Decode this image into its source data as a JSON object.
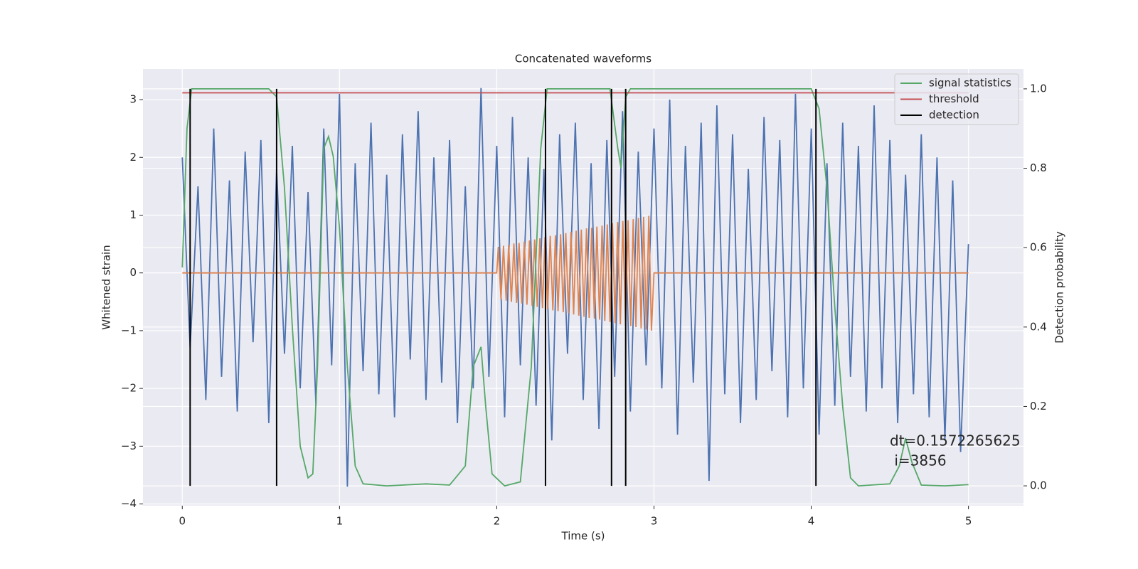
{
  "chart_data": {
    "type": "line",
    "title": "Concatenated waveforms",
    "x_label": "Time (s)",
    "y_label": "Whitened strain",
    "y2_label": "Detection probability",
    "xlim": [
      -0.25,
      5.35
    ],
    "ylim": [
      -4.03,
      3.53
    ],
    "y2lim": [
      -0.05,
      1.05
    ],
    "xticks": [
      0,
      1,
      2,
      3,
      4,
      5
    ],
    "yticks": [
      {
        "value": -4,
        "label": "−4"
      },
      {
        "value": -3,
        "label": "−3"
      },
      {
        "value": -2,
        "label": "−2"
      },
      {
        "value": -1,
        "label": "−1"
      },
      0,
      1,
      2,
      3
    ],
    "y2ticks": [
      {
        "value": 0,
        "label": "0.0"
      },
      0.2,
      0.4,
      0.6,
      0.8,
      {
        "value": 1,
        "label": "1.0"
      }
    ],
    "grid": true,
    "legend": "upper right",
    "annotation": [
      "dt=0.1572265625",
      " i=3856"
    ],
    "series": [
      {
        "color": "#4c72b0",
        "axis": "y",
        "x": [
          0,
          0.05,
          0.1,
          0.15,
          0.2,
          0.25,
          0.3,
          0.35,
          0.4,
          0.45,
          0.5,
          0.55,
          0.6,
          0.65,
          0.7,
          0.75,
          0.8,
          0.85,
          0.9,
          0.95,
          1,
          1.05,
          1.1,
          1.15,
          1.2,
          1.25,
          1.3,
          1.35,
          1.4,
          1.45,
          1.5,
          1.55,
          1.6,
          1.65,
          1.7,
          1.75,
          1.8,
          1.85,
          1.9,
          1.95,
          2,
          2.05,
          2.1,
          2.15,
          2.2,
          2.25,
          2.3,
          2.35,
          2.4,
          2.45,
          2.5,
          2.55,
          2.6,
          2.65,
          2.7,
          2.75,
          2.8,
          2.85,
          2.9,
          2.95,
          3,
          3.05,
          3.1,
          3.15,
          3.2,
          3.25,
          3.3,
          3.35,
          3.4,
          3.45,
          3.5,
          3.55,
          3.6,
          3.65,
          3.7,
          3.75,
          3.8,
          3.85,
          3.9,
          3.95,
          4,
          4.05,
          4.1,
          4.15,
          4.2,
          4.25,
          4.3,
          4.35,
          4.4,
          4.45,
          4.5,
          4.55,
          4.6,
          4.65,
          4.7,
          4.75,
          4.8,
          4.85,
          4.9,
          4.95,
          5
        ],
        "values": [
          2.0,
          -1.3,
          1.5,
          -2.2,
          2.5,
          -1.8,
          1.6,
          -2.4,
          2.1,
          -1.2,
          2.3,
          -2.6,
          1.8,
          -1.4,
          2.2,
          -2.0,
          1.4,
          -2.3,
          2.5,
          -1.6,
          3.1,
          -3.7,
          1.9,
          -1.7,
          2.6,
          -2.1,
          1.7,
          -2.5,
          2.4,
          -1.5,
          2.8,
          -2.2,
          2.0,
          -1.9,
          2.3,
          -2.6,
          1.5,
          -2.0,
          3.2,
          -1.8,
          2.2,
          -2.5,
          2.7,
          -1.6,
          2.0,
          -2.3,
          1.8,
          -2.9,
          2.4,
          -1.4,
          2.6,
          -2.2,
          1.9,
          -2.7,
          2.3,
          -1.8,
          2.8,
          -2.4,
          2.1,
          -1.6,
          2.5,
          -2.0,
          3.0,
          -2.8,
          2.2,
          -1.9,
          2.6,
          -3.6,
          2.9,
          -2.1,
          2.4,
          -2.6,
          1.8,
          -2.2,
          2.7,
          -1.7,
          2.3,
          -2.5,
          3.1,
          -2.0,
          2.5,
          -2.8,
          1.9,
          -2.3,
          2.6,
          -1.8,
          2.2,
          -2.4,
          2.9,
          -2.0,
          2.3,
          -2.6,
          1.7,
          -2.1,
          2.4,
          -2.5,
          2.0,
          -2.9,
          1.6,
          -3.1,
          0.5
        ]
      },
      {
        "color": "#dd8452",
        "axis": "y",
        "x": [
          0,
          2.0,
          2.01,
          2.027,
          2.043,
          2.06,
          2.076,
          2.093,
          2.109,
          2.126,
          2.142,
          2.159,
          2.175,
          2.192,
          2.208,
          2.225,
          2.241,
          2.258,
          2.274,
          2.291,
          2.307,
          2.324,
          2.34,
          2.357,
          2.373,
          2.39,
          2.406,
          2.423,
          2.439,
          2.456,
          2.472,
          2.489,
          2.505,
          2.522,
          2.538,
          2.555,
          2.571,
          2.588,
          2.604,
          2.621,
          2.637,
          2.654,
          2.67,
          2.687,
          2.703,
          2.72,
          2.736,
          2.753,
          2.769,
          2.786,
          2.802,
          2.819,
          2.835,
          2.852,
          2.868,
          2.885,
          2.901,
          2.918,
          2.934,
          2.951,
          2.967,
          2.984,
          3.0,
          5.0
        ],
        "values": [
          0,
          0,
          0.45,
          -0.46,
          0.47,
          -0.48,
          0.49,
          -0.5,
          0.51,
          -0.52,
          0.52,
          -0.53,
          0.54,
          -0.55,
          0.56,
          -0.57,
          0.58,
          -0.59,
          0.6,
          -0.61,
          0.62,
          -0.63,
          0.64,
          -0.65,
          0.65,
          -0.66,
          0.67,
          -0.68,
          0.69,
          -0.7,
          0.71,
          -0.72,
          0.73,
          -0.74,
          0.75,
          -0.76,
          0.77,
          -0.78,
          0.78,
          -0.79,
          0.8,
          -0.81,
          0.82,
          -0.83,
          0.84,
          -0.85,
          0.86,
          -0.87,
          0.88,
          -0.89,
          0.9,
          -0.91,
          0.91,
          -0.92,
          0.93,
          -0.94,
          0.95,
          -0.96,
          0.97,
          -0.98,
          0.99,
          -1.0,
          0,
          0
        ]
      },
      {
        "name": "signal statistics",
        "color": "#55a868",
        "axis": "y2",
        "x": [
          0,
          0.03,
          0.06,
          0.55,
          0.6,
          0.65,
          0.7,
          0.75,
          0.8,
          0.83,
          0.86,
          0.9,
          0.93,
          0.96,
          1.0,
          1.05,
          1.1,
          1.15,
          1.3,
          1.55,
          1.7,
          1.8,
          1.85,
          1.9,
          1.93,
          1.97,
          2.05,
          2.15,
          2.22,
          2.28,
          2.32,
          2.72,
          2.77,
          2.79,
          2.82,
          2.85,
          4.0,
          4.05,
          4.1,
          4.15,
          4.2,
          4.25,
          4.3,
          4.5,
          4.56,
          4.6,
          4.64,
          4.7,
          4.85,
          5.0
        ],
        "values": [
          0.55,
          0.9,
          1.0,
          1.0,
          0.98,
          0.75,
          0.4,
          0.1,
          0.02,
          0.03,
          0.3,
          0.85,
          0.88,
          0.83,
          0.65,
          0.3,
          0.05,
          0.005,
          0.0,
          0.005,
          0.002,
          0.05,
          0.3,
          0.35,
          0.2,
          0.03,
          0.0,
          0.01,
          0.3,
          0.85,
          1.0,
          1.0,
          0.85,
          0.8,
          0.98,
          1.0,
          1.0,
          0.95,
          0.75,
          0.45,
          0.2,
          0.02,
          0.0,
          0.005,
          0.05,
          0.12,
          0.06,
          0.002,
          0.0,
          0.003
        ]
      },
      {
        "name": "threshold",
        "color": "#c44e52",
        "axis": "y2",
        "x": [
          0,
          5
        ],
        "values": [
          0.99,
          0.99
        ]
      },
      {
        "name": "detection",
        "color": "#000000",
        "axis": "y2",
        "kind": "vlines",
        "x": [
          0.05,
          0.6,
          2.31,
          2.73,
          2.82,
          4.03
        ],
        "ymin": 0,
        "ymax": 1
      }
    ]
  }
}
